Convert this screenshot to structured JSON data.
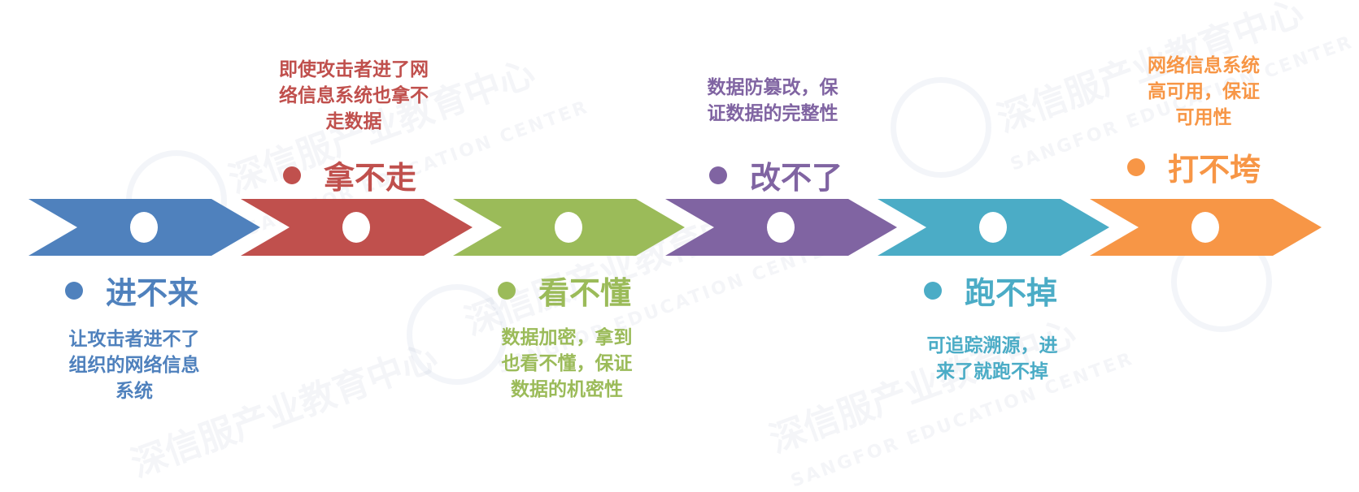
{
  "watermark": {
    "text": "深信服产业教育中心",
    "sub": "SANGFOR EDUCATION CENTER"
  },
  "stages": [
    {
      "title": "进不来",
      "desc": "让攻击者进不了\n组织的网络信息\n系统",
      "color": "#4f81bd"
    },
    {
      "title": "拿不走",
      "desc": "即使攻击者进了网\n络信息系统也拿不\n走数据",
      "color": "#c0504d"
    },
    {
      "title": "看不懂",
      "desc": "数据加密，拿到\n也看不懂，保证\n数据的机密性",
      "color": "#9bbb59"
    },
    {
      "title": "改不了",
      "desc": "数据防篡改，保\n证数据的完整性",
      "color": "#8064a2"
    },
    {
      "title": "跑不掉",
      "desc": "可追踪溯源，进\n来了就跑不掉",
      "color": "#4bacc6"
    },
    {
      "title": "打不垮",
      "desc": "网络信息系统\n高可用，保证\n可用性",
      "color": "#f79646"
    }
  ]
}
